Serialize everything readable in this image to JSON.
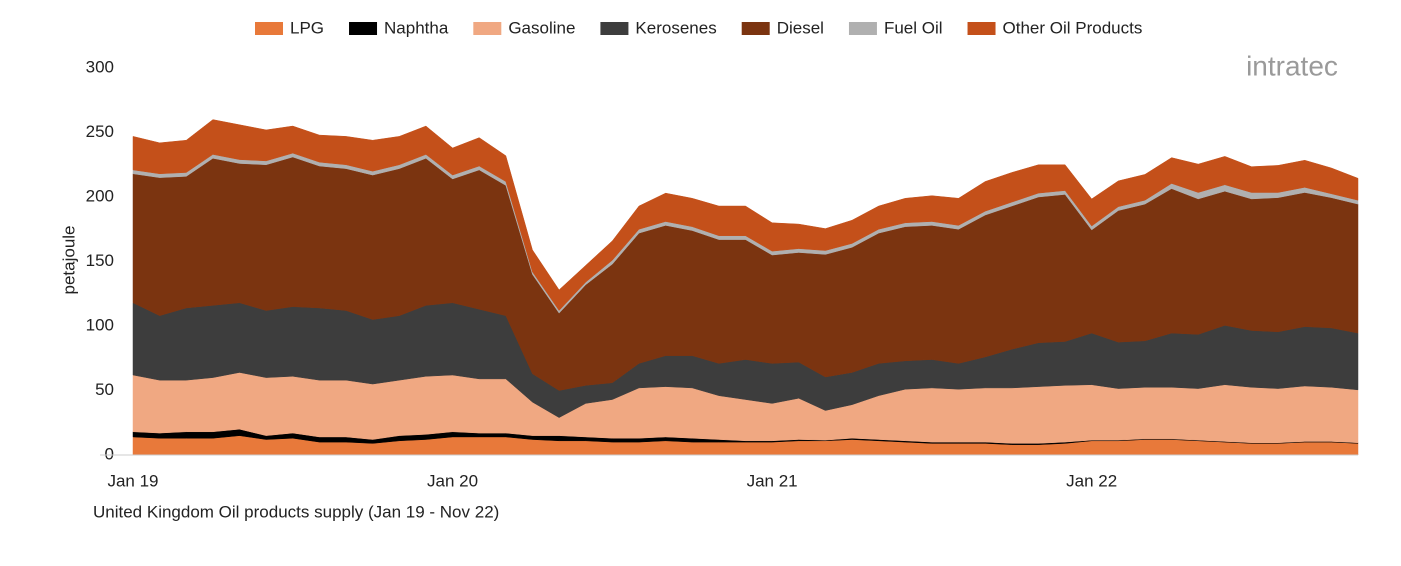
{
  "chart_data": {
    "type": "stacked_area",
    "title": "United Kingdom Oil products supply (Jan 19 - Nov 22)",
    "y_label": "petajoule",
    "watermark": "intratec",
    "categories": [
      "Jan 19",
      null,
      null,
      null,
      null,
      null,
      null,
      null,
      null,
      null,
      null,
      null,
      "Jan 20",
      null,
      null,
      null,
      null,
      null,
      null,
      null,
      null,
      null,
      null,
      null,
      "Jan 21",
      null,
      null,
      null,
      null,
      null,
      null,
      null,
      null,
      null,
      null,
      null,
      "Jan 22",
      null,
      null,
      null,
      null,
      null,
      null,
      null,
      null,
      null,
      null
    ],
    "ylim": [
      0,
      300
    ],
    "yticks": [
      0,
      50,
      100,
      150,
      200,
      250,
      300
    ],
    "grid": false,
    "legend": "top",
    "series": [
      {
        "name": "LPG",
        "color": "#e8793a",
        "values": [
          14,
          13,
          13,
          13,
          15,
          12,
          13,
          10,
          10,
          9,
          11,
          12,
          14,
          14,
          14,
          12,
          11,
          11,
          10,
          10,
          11,
          10,
          10,
          10,
          10,
          11,
          11,
          12,
          11,
          10,
          9,
          9,
          9,
          8,
          8,
          9,
          11,
          11,
          12,
          12,
          11,
          10,
          9,
          9,
          10,
          10,
          9
        ]
      },
      {
        "name": "Naphtha",
        "color": "#000000",
        "values": [
          4,
          4,
          5,
          5,
          5,
          3,
          4,
          4,
          4,
          3,
          4,
          4,
          4,
          3,
          3,
          3,
          4,
          3,
          3,
          3,
          3,
          3,
          2,
          1,
          1,
          1,
          0.5,
          1,
          1,
          1,
          1,
          1,
          1,
          1,
          1,
          1,
          0.5,
          0.5,
          0.5,
          0.5,
          0.5,
          0.5,
          0.5,
          0.5,
          0.5,
          0.5,
          0.5
        ]
      },
      {
        "name": "Gasoline",
        "color": "#f0a882",
        "values": [
          44,
          41,
          40,
          42,
          44,
          45,
          44,
          44,
          44,
          43,
          43,
          45,
          44,
          42,
          42,
          26,
          14,
          26,
          30,
          39,
          39,
          39,
          34,
          32,
          29,
          32,
          23,
          26,
          34,
          40,
          42,
          41,
          42,
          43,
          44,
          44,
          43,
          40,
          40,
          40,
          40,
          44,
          43,
          42,
          43,
          42,
          41
        ]
      },
      {
        "name": "Kerosenes",
        "color": "#3d3d3d",
        "values": [
          56,
          50,
          56,
          56,
          54,
          52,
          54,
          56,
          54,
          50,
          50,
          55,
          56,
          54,
          49,
          22,
          21,
          14,
          13,
          19,
          24,
          25,
          25,
          31,
          31,
          28,
          26,
          25,
          25,
          22,
          22,
          20,
          24,
          30,
          34,
          34,
          40,
          36,
          36,
          42,
          42,
          46,
          44,
          44,
          46,
          46,
          44
        ]
      },
      {
        "name": "Diesel",
        "color": "#7b3410",
        "values": [
          100,
          107,
          102,
          114,
          108,
          113,
          116,
          110,
          110,
          112,
          114,
          114,
          96,
          108,
          101,
          77,
          60,
          78,
          92,
          101,
          101,
          97,
          96,
          93,
          84,
          85,
          95,
          97,
          101,
          104,
          104,
          104,
          110,
          111,
          113,
          114,
          80,
          102,
          106,
          112,
          105,
          104,
          102,
          104,
          104,
          101,
          100
        ]
      },
      {
        "name": "Fuel Oil",
        "color": "#b0b0b0",
        "values": [
          3,
          3,
          3,
          3,
          3,
          3,
          3,
          3,
          3,
          3,
          3,
          3,
          3,
          3,
          3,
          2,
          2,
          2,
          3,
          3,
          3,
          3,
          3,
          3,
          3,
          3,
          3,
          3,
          3,
          3,
          3,
          3,
          3,
          3,
          3,
          3,
          3,
          3,
          3,
          4,
          5,
          5,
          5,
          4,
          4,
          3,
          3
        ]
      },
      {
        "name": "Other Oil Products",
        "color": "#c4501a",
        "values": [
          26,
          24,
          25,
          27,
          27,
          24,
          21,
          21,
          22,
          24,
          22,
          22,
          21,
          22,
          20,
          17,
          16,
          13,
          15,
          18,
          22,
          22,
          23,
          23,
          22,
          19,
          17,
          18,
          18,
          19,
          20,
          21,
          23,
          23,
          22,
          20,
          21,
          20,
          20,
          20,
          22,
          22,
          20,
          21,
          21,
          20,
          17
        ]
      }
    ]
  }
}
